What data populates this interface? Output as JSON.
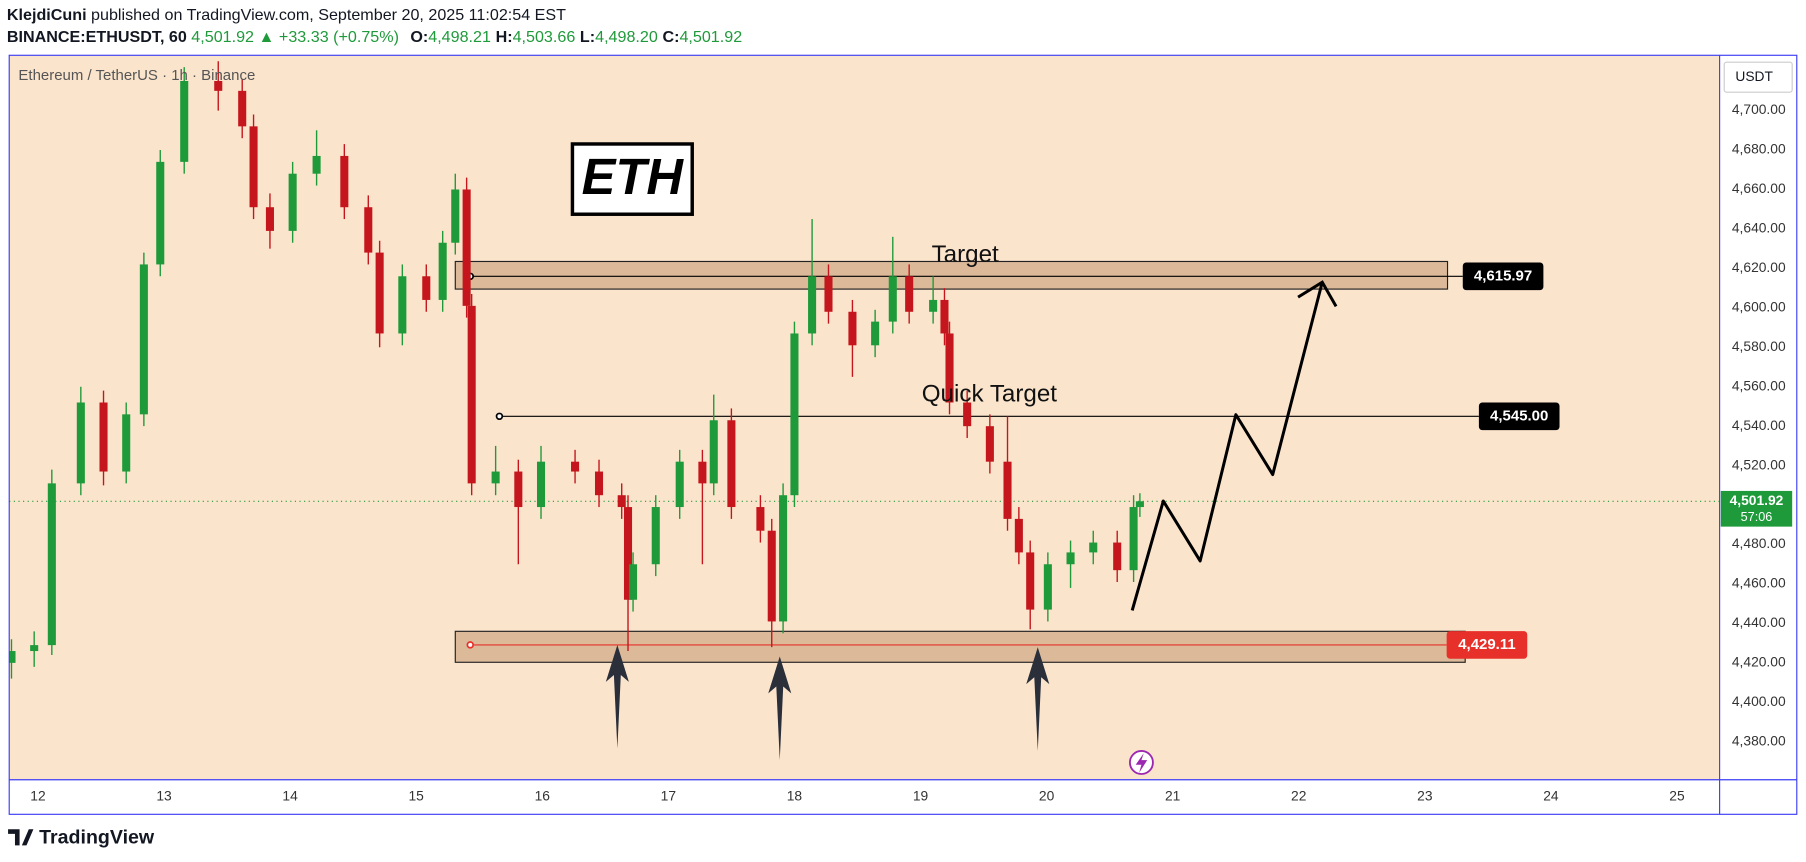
{
  "header": {
    "author": "KlejdiCuni",
    "published": "published on TradingView.com, September 20, 2025 11:02:54 EST",
    "symbol": "BINANCE:ETHUSDT, 60",
    "last": {
      "value": 4501.92,
      "label": "4,501.92"
    },
    "change": "▲ +33.33 (+0.75%)",
    "ohlc": [
      {
        "key": "O:",
        "value": 4498.21,
        "label": "4,498.21"
      },
      {
        "key": "H:",
        "value": 4503.66,
        "label": "4,503.66"
      },
      {
        "key": "L:",
        "value": 4498.2,
        "label": "4,498.20"
      },
      {
        "key": "C:",
        "value": 4501.92,
        "label": "4,501.92"
      }
    ]
  },
  "footer": {
    "brand": "TradingView"
  },
  "chart_data": {
    "type": "candlestick",
    "legend": "Ethereum / TetherUS · 1h · Binance",
    "title": "ETH",
    "currency": "USDT",
    "up_color": "#1f9a3a",
    "down_color": "#c4161c",
    "background": "#fbe4cc",
    "x": [
      11.79,
      11.97,
      12.11,
      12.34,
      12.52,
      12.7,
      12.84,
      12.97,
      13.16,
      13.43,
      13.62,
      13.71,
      13.84,
      14.02,
      14.21,
      14.43,
      14.62,
      14.71,
      14.89,
      15.08,
      15.21,
      15.31,
      15.4,
      15.44,
      15.63,
      15.81,
      15.99,
      16.26,
      16.45,
      16.63,
      16.68,
      16.72,
      16.9,
      17.09,
      17.27,
      17.36,
      17.5,
      17.73,
      17.82,
      17.91,
      18.0,
      18.14,
      18.27,
      18.46,
      18.64,
      18.78,
      18.91,
      19.1,
      19.19,
      19.23,
      19.37,
      19.55,
      19.69,
      19.78,
      19.87,
      20.01,
      20.19,
      20.37,
      20.56,
      20.69,
      20.74
    ],
    "open": [
      4420,
      4426,
      4429,
      4511,
      4552,
      4517,
      4546,
      4622,
      4674,
      4715,
      4710,
      4692,
      4651,
      4639,
      4668,
      4677,
      4651,
      4628,
      4587,
      4616,
      4604,
      4633,
      4660,
      4601,
      4511,
      4517,
      4499,
      4522,
      4517,
      4505,
      4499,
      4452,
      4470,
      4499,
      4522,
      4511,
      4543,
      4499,
      4487,
      4441,
      4505,
      4587,
      4616,
      4598,
      4581,
      4593,
      4616,
      4598,
      4604,
      4587,
      4552,
      4540,
      4522,
      4493,
      4476,
      4447,
      4470,
      4476,
      4481,
      4467,
      4499
    ],
    "high": [
      4432,
      4436,
      4518,
      4560,
      4558,
      4552,
      4628,
      4680,
      4722,
      4725,
      4716,
      4698,
      4658,
      4674,
      4690,
      4683,
      4657,
      4634,
      4622,
      4622,
      4639,
      4668,
      4666,
      4607,
      4530,
      4523,
      4530,
      4528,
      4523,
      4511,
      4505,
      4476,
      4505,
      4528,
      4528,
      4556,
      4549,
      4505,
      4493,
      4511,
      4593,
      4645,
      4622,
      4604,
      4599,
      4636,
      4622,
      4616,
      4610,
      4593,
      4558,
      4546,
      4545,
      4499,
      4482,
      4476,
      4482,
      4487,
      4487,
      4505,
      4506
    ],
    "low": [
      4412,
      4418,
      4424,
      4505,
      4510,
      4511,
      4540,
      4616,
      4668,
      4700,
      4686,
      4645,
      4630,
      4633,
      4662,
      4645,
      4622,
      4580,
      4581,
      4598,
      4598,
      4627,
      4595,
      4505,
      4505,
      4470,
      4493,
      4511,
      4499,
      4493,
      4426,
      4446,
      4464,
      4493,
      4470,
      4505,
      4493,
      4481,
      4428,
      4435,
      4499,
      4581,
      4592,
      4565,
      4575,
      4587,
      4592,
      4592,
      4581,
      4546,
      4534,
      4516,
      4487,
      4470,
      4437,
      4441,
      4458,
      4470,
      4461,
      4461,
      4494
    ],
    "close": [
      4426,
      4429,
      4511,
      4552,
      4517,
      4546,
      4622,
      4674,
      4715,
      4710,
      4692,
      4651,
      4639,
      4668,
      4677,
      4651,
      4628,
      4587,
      4616,
      4604,
      4633,
      4660,
      4601,
      4511,
      4517,
      4499,
      4522,
      4517,
      4505,
      4499,
      4452,
      4470,
      4499,
      4522,
      4511,
      4543,
      4499,
      4487,
      4441,
      4505,
      4587,
      4616,
      4598,
      4581,
      4593,
      4616,
      4598,
      4604,
      4587,
      4552,
      4540,
      4522,
      4493,
      4476,
      4447,
      4470,
      4476,
      4481,
      4467,
      4499,
      4501.92
    ],
    "xlim": [
      11.772,
      25.338
    ],
    "ylim": [
      4360.74,
      4728.03
    ],
    "xticks": [
      12,
      13,
      14,
      15,
      16,
      17,
      18,
      19,
      20,
      21,
      22,
      23,
      24,
      25
    ],
    "yticks": [
      {
        "value": 4380,
        "label": "4,380.00"
      },
      {
        "value": 4400,
        "label": "4,400.00"
      },
      {
        "value": 4420,
        "label": "4,420.00"
      },
      {
        "value": 4440,
        "label": "4,440.00"
      },
      {
        "value": 4460,
        "label": "4,460.00"
      },
      {
        "value": 4480,
        "label": "4,480.00"
      },
      {
        "value": 4500,
        "label": "4,500.00"
      },
      {
        "value": 4520,
        "label": "4,520.00"
      },
      {
        "value": 4540,
        "label": "4,540.00"
      },
      {
        "value": 4560,
        "label": "4,560.00"
      },
      {
        "value": 4580,
        "label": "4,580.00"
      },
      {
        "value": 4600,
        "label": "4,600.00"
      },
      {
        "value": 4620,
        "label": "4,620.00"
      },
      {
        "value": 4640,
        "label": "4,640.00"
      },
      {
        "value": 4660,
        "label": "4,660.00"
      },
      {
        "value": 4680,
        "label": "4,680.00"
      },
      {
        "value": 4700,
        "label": "4,700.00"
      }
    ],
    "levels": [
      {
        "name": "Target",
        "value": {
          "value": 4615.97,
          "label": "4,615.97"
        },
        "zone": [
          4609.5,
          4623.5
        ],
        "start": 15.31,
        "end": 23.18,
        "color": "#000000"
      },
      {
        "name": "Quick Target",
        "value": {
          "value": 4545.0,
          "label": "4,545.00"
        },
        "start": 15.66,
        "end": 23.43,
        "color": "#000000"
      },
      {
        "value": {
          "value": 4429.11,
          "label": "4,429.11"
        },
        "zone": [
          4420.3,
          4436.0
        ],
        "start": 15.31,
        "end": 23.32,
        "color": "#e8302a"
      }
    ],
    "current": {
      "value": 4501.92,
      "label": "4,501.92",
      "countdown": "57:06",
      "color": "#1f9a3a"
    }
  }
}
